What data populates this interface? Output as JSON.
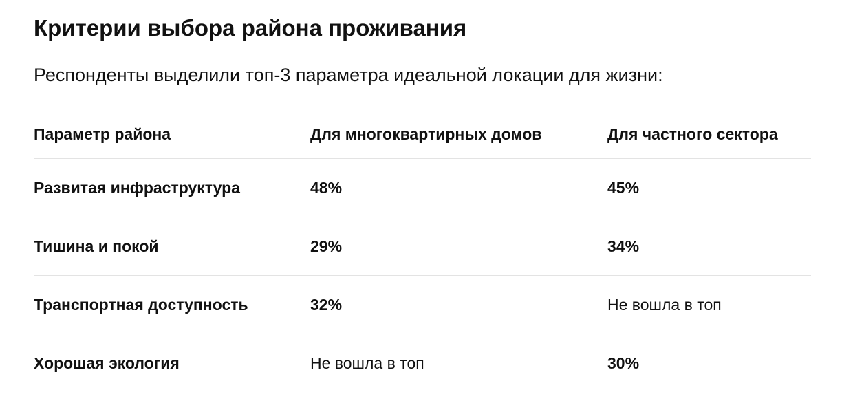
{
  "header": {
    "title": "Критерии выбора района проживания",
    "subtitle": "Респонденты выделили топ-3 параметра идеальной локации для жизни:"
  },
  "table": {
    "columns": [
      "Параметр района",
      "Для многоквартирных домов",
      "Для частного сектора"
    ],
    "rows": [
      [
        "Развитая инфраструктура",
        "48%",
        "45%"
      ],
      [
        "Тишина и покой",
        "29%",
        "34%"
      ],
      [
        "Транспортная доступность",
        "32%",
        "Не вошла в топ"
      ],
      [
        "Хорошая экология",
        "Не вошла в топ",
        "30%"
      ]
    ]
  }
}
